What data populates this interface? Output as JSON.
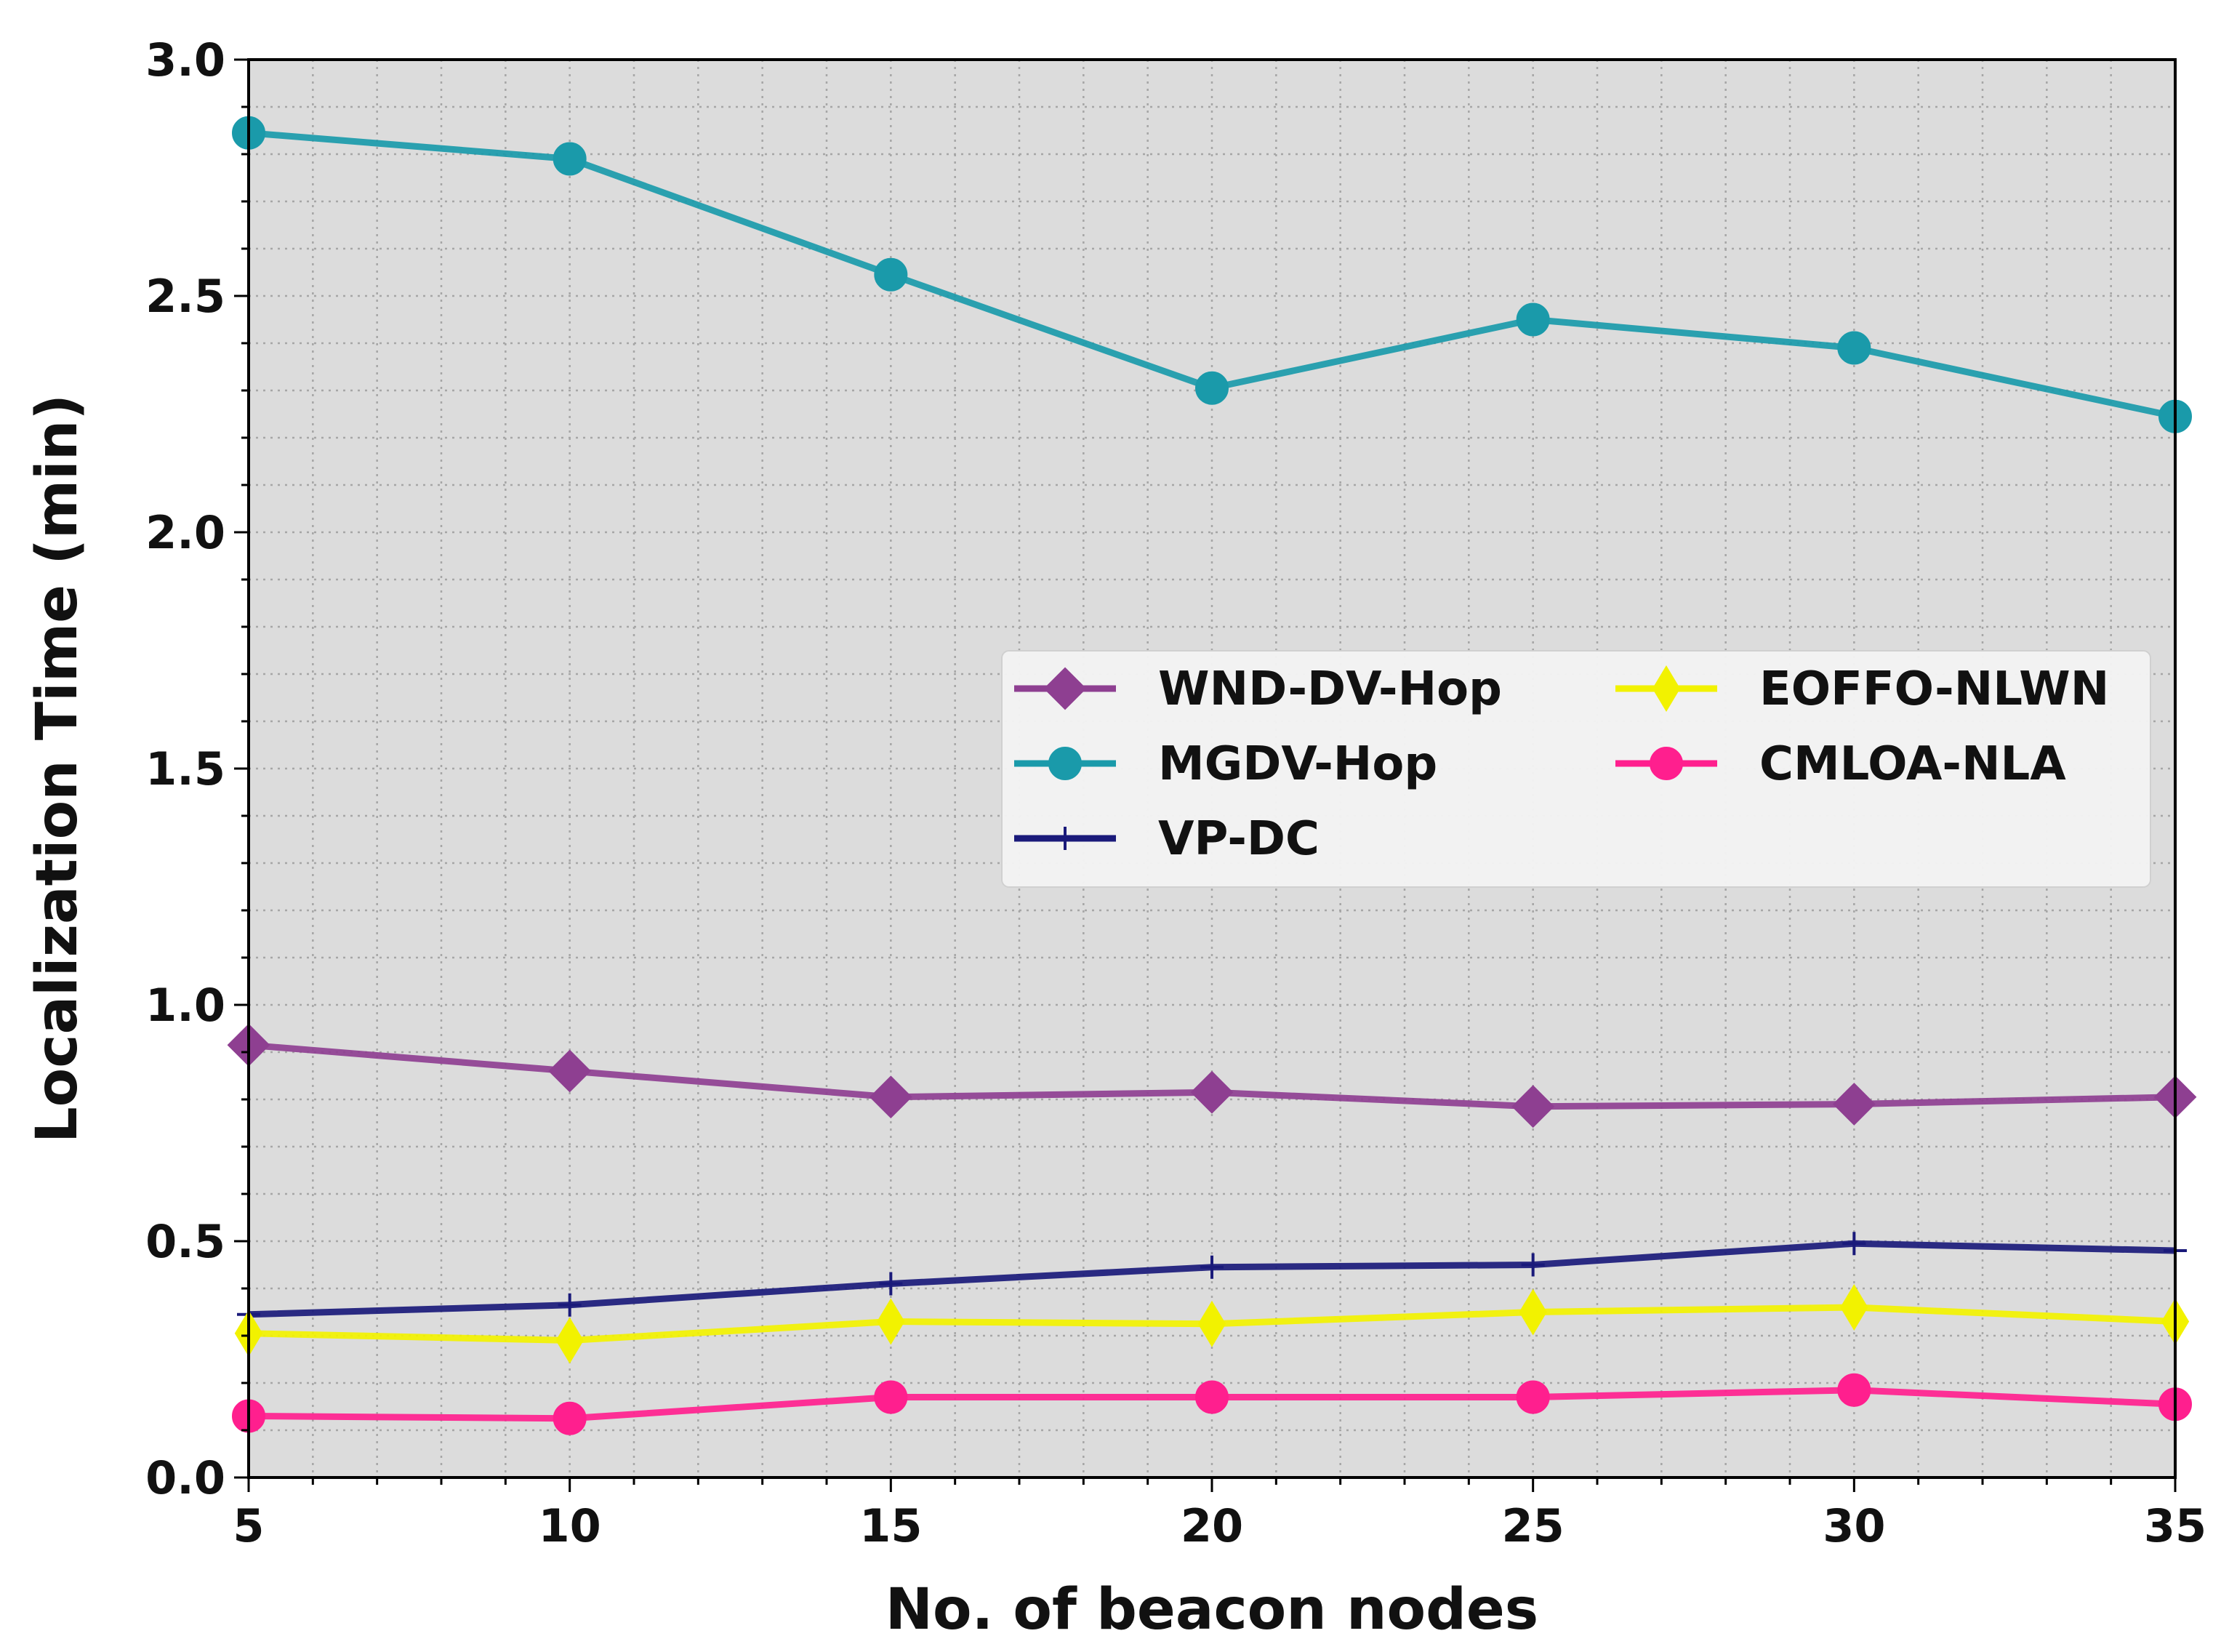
{
  "chart_data": {
    "type": "line",
    "title": "",
    "xlabel": "No. of beacon nodes",
    "ylabel": "Localization Time (min)",
    "x": [
      5,
      10,
      15,
      20,
      25,
      30,
      35
    ],
    "xlim": [
      5,
      35
    ],
    "ylim": [
      0.0,
      3.0
    ],
    "xticks": [
      "5",
      "10",
      "15",
      "20",
      "25",
      "30",
      "35"
    ],
    "yticks": [
      "0.0",
      "0.5",
      "1.0",
      "1.5",
      "2.0",
      "2.5",
      "3.0"
    ],
    "grid": true,
    "legend_position": "center-right",
    "series": [
      {
        "name": "WND-DV-Hop",
        "color": "#8e3f91",
        "marker": "diamond",
        "values": [
          0.915,
          0.86,
          0.805,
          0.815,
          0.785,
          0.79,
          0.805
        ]
      },
      {
        "name": "MGDV-Hop",
        "color": "#1a9aaa",
        "marker": "circle",
        "values": [
          2.845,
          2.79,
          2.545,
          2.305,
          2.45,
          2.39,
          2.245
        ]
      },
      {
        "name": "VP-DC",
        "color": "#1a1a7a",
        "marker": "plus",
        "values": [
          0.345,
          0.365,
          0.41,
          0.445,
          0.45,
          0.495,
          0.48
        ]
      },
      {
        "name": "EOFFO-NLWN",
        "color": "#f2f200",
        "marker": "thin_diamond",
        "values": [
          0.305,
          0.29,
          0.33,
          0.325,
          0.35,
          0.36,
          0.33
        ]
      },
      {
        "name": "CMLOA-NLA",
        "color": "#ff1f8e",
        "marker": "circle",
        "values": [
          0.13,
          0.125,
          0.17,
          0.17,
          0.17,
          0.185,
          0.155
        ]
      }
    ]
  }
}
